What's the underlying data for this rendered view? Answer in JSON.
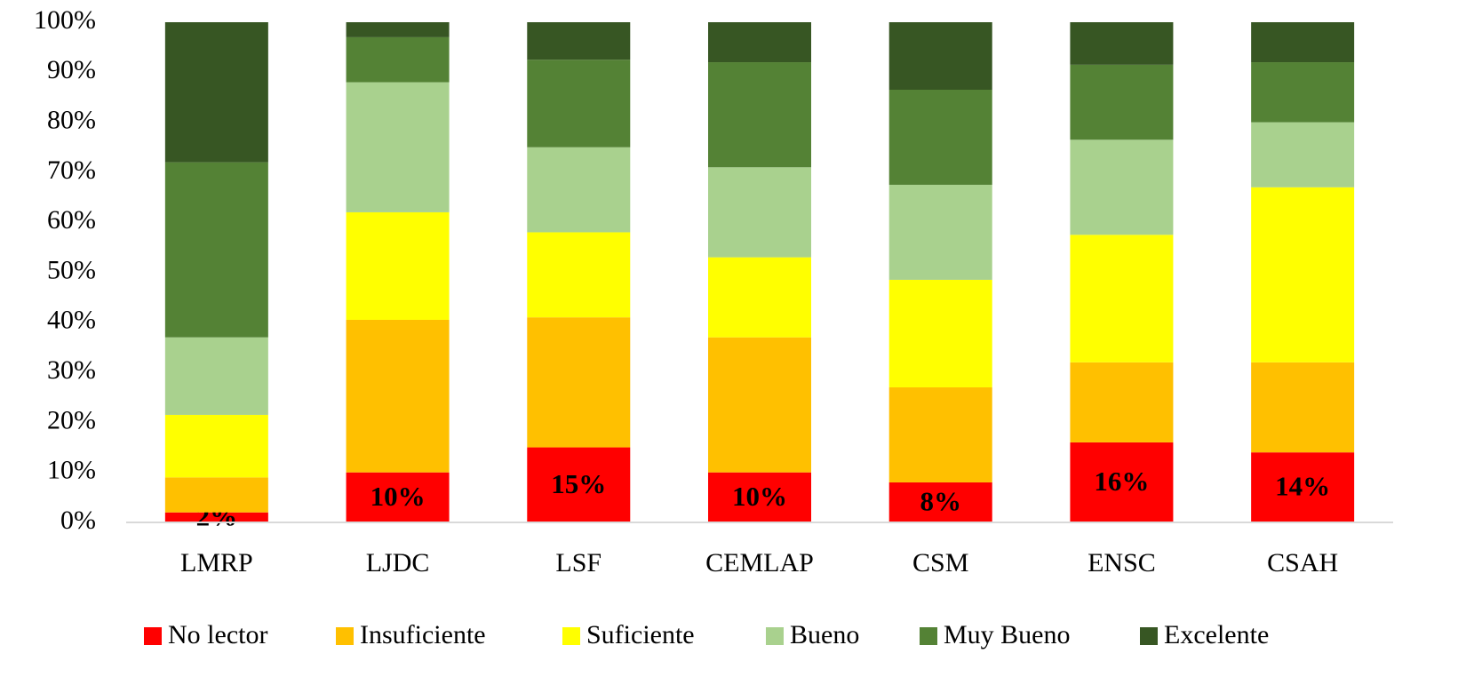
{
  "chart_data": {
    "type": "stacked_bar",
    "categories": [
      "LMRP",
      "LJDC",
      "LSF",
      "CEMLAP",
      "CSM",
      "ENSC",
      "CSAH"
    ],
    "series": [
      {
        "name": "No lector",
        "color": "#ff0000",
        "values": [
          2,
          10,
          15,
          10,
          8,
          16,
          14
        ],
        "value_labels": [
          "2%",
          "10%",
          "15%",
          "10%",
          "8%",
          "16%",
          "14%"
        ]
      },
      {
        "name": "Insuficiente",
        "color": "#ffc000",
        "values": [
          7,
          30.5,
          26,
          27,
          19,
          16,
          18
        ]
      },
      {
        "name": "Suficiente",
        "color": "#ffff00",
        "values": [
          12.5,
          21.5,
          17,
          16,
          21.5,
          25.5,
          35
        ]
      },
      {
        "name": "Bueno",
        "color": "#a9d18e",
        "values": [
          15.5,
          26,
          17,
          18,
          19,
          19,
          13
        ]
      },
      {
        "name": "Muy Bueno",
        "color": "#548235",
        "values": [
          35,
          9,
          17.5,
          21,
          19,
          15,
          12
        ]
      },
      {
        "name": "Excelente",
        "color": "#375623",
        "values": [
          28,
          3,
          7.5,
          8,
          13.5,
          8.5,
          8
        ]
      }
    ],
    "ylim": [
      0,
      100
    ],
    "yticks": [
      {
        "value": 0,
        "label": "0%"
      },
      {
        "value": 10,
        "label": "10%"
      },
      {
        "value": 20,
        "label": "20%"
      },
      {
        "value": 30,
        "label": "30%"
      },
      {
        "value": 40,
        "label": "40%"
      },
      {
        "value": 50,
        "label": "50%"
      },
      {
        "value": 60,
        "label": "60%"
      },
      {
        "value": 70,
        "label": "70%"
      },
      {
        "value": 80,
        "label": "80%"
      },
      {
        "value": 90,
        "label": "90%"
      },
      {
        "value": 100,
        "label": "100%"
      }
    ],
    "grid": false,
    "legend": "bottom"
  }
}
